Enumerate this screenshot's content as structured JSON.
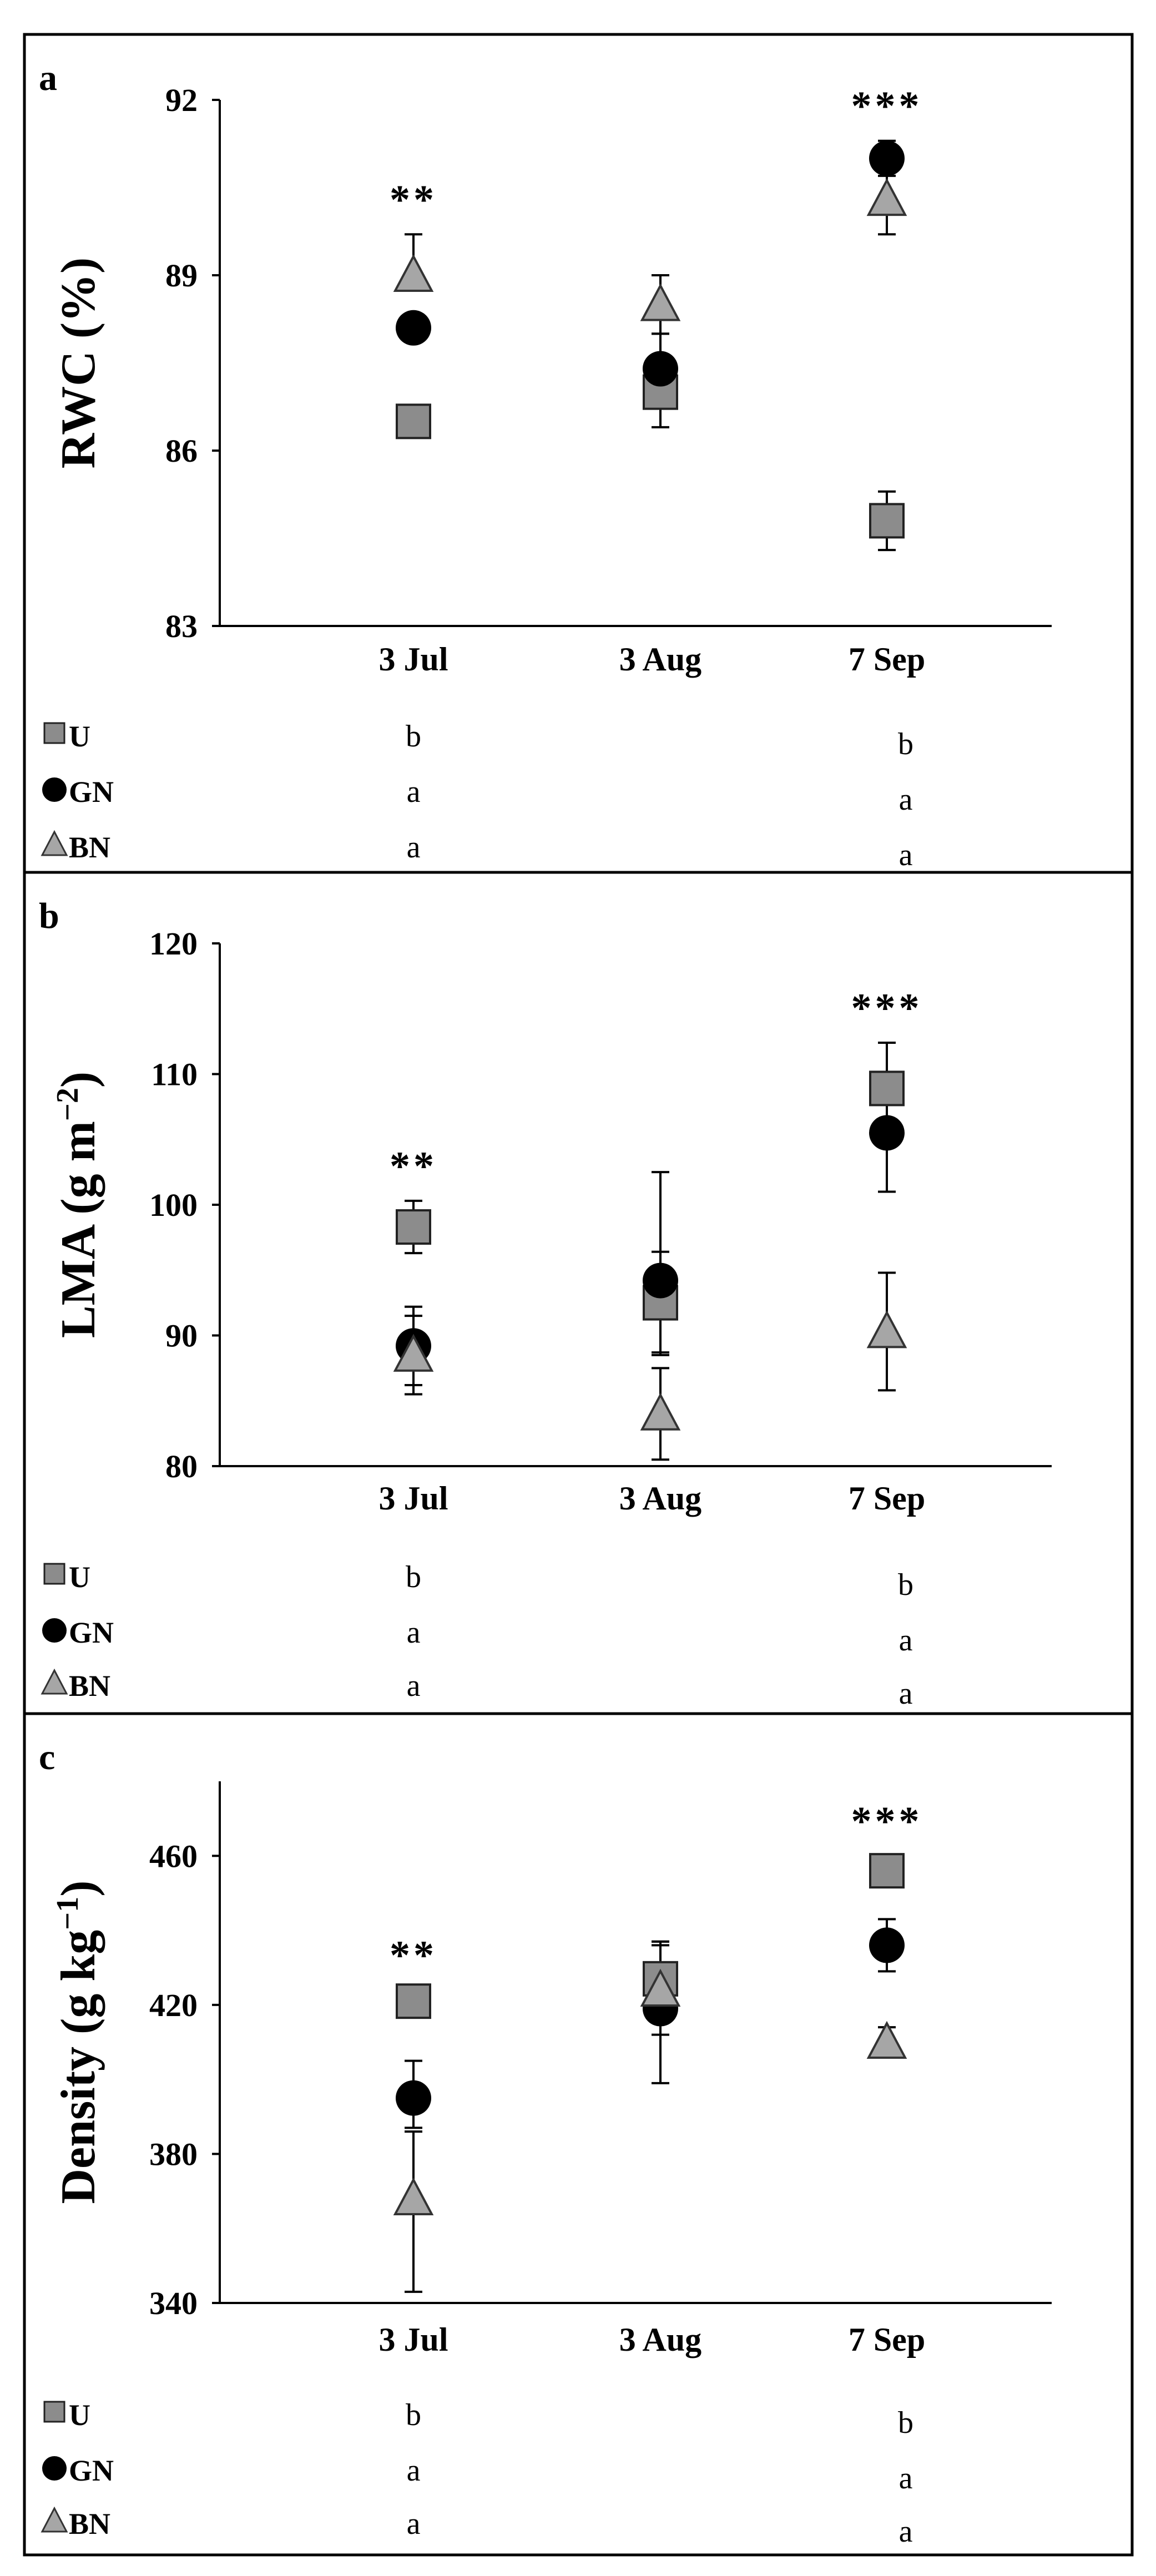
{
  "chart_data": [
    {
      "type": "scatter",
      "panel_label": "a",
      "ylabel": "RWC (%)",
      "ylabel_sup": "",
      "ylabel_tail": "",
      "ylim": [
        83,
        92
      ],
      "yticks": [
        "92",
        "89",
        "86",
        "83"
      ],
      "yticks_values": [
        92,
        89,
        86,
        83
      ],
      "categories": [
        "3 Jul",
        "3 Aug",
        "7 Sep"
      ],
      "significance": [
        "**",
        "",
        "***"
      ],
      "series": [
        {
          "name": "U",
          "marker": "square",
          "color": "#8c8c8c",
          "values": [
            86.5,
            87.0,
            84.8
          ],
          "err_low": [
            0,
            0.6,
            0.5
          ],
          "err_high": [
            0,
            0.5,
            0.5
          ]
        },
        {
          "name": "GN",
          "marker": "circle",
          "color": "#000000",
          "values": [
            88.1,
            87.4,
            91.0
          ],
          "err_low": [
            0,
            0.6,
            0.3
          ],
          "err_high": [
            0,
            0.6,
            0.3
          ]
        },
        {
          "name": "BN",
          "marker": "triangle",
          "color": "#a6a6a6",
          "values": [
            89.0,
            88.5,
            90.3
          ],
          "err_low": [
            0,
            0.5,
            0.6
          ],
          "err_high": [
            0.7,
            0.5,
            0.6
          ]
        }
      ],
      "legend": {
        "items": [
          {
            "name": "U",
            "letters": [
              "b",
              "b"
            ]
          },
          {
            "name": "GN",
            "letters": [
              "a",
              "a"
            ]
          },
          {
            "name": "BN",
            "letters": [
              "a",
              "a"
            ]
          }
        ]
      }
    },
    {
      "type": "scatter",
      "panel_label": "b",
      "ylabel": "LMA (g m",
      "ylabel_sup": "−2",
      "ylabel_tail": ")",
      "ylim": [
        80,
        120
      ],
      "yticks": [
        "120",
        "110",
        "100",
        "90",
        "80"
      ],
      "yticks_values": [
        120,
        110,
        100,
        90,
        80
      ],
      "categories": [
        "3 Jul",
        "3 Aug",
        "7 Sep"
      ],
      "significance": [
        "**",
        "",
        "***"
      ],
      "series": [
        {
          "name": "U",
          "marker": "square",
          "color": "#8c8c8c",
          "values": [
            98.3,
            92.5,
            108.9
          ],
          "err_low": [
            2.0,
            4.0,
            3.5
          ],
          "err_high": [
            2.0,
            10.0,
            3.5
          ]
        },
        {
          "name": "GN",
          "marker": "circle",
          "color": "#000000",
          "values": [
            89.2,
            94.2,
            105.5
          ],
          "err_low": [
            3.0,
            5.5,
            4.5
          ],
          "err_high": [
            3.0,
            2.2,
            4.5
          ]
        },
        {
          "name": "BN",
          "marker": "triangle",
          "color": "#a6a6a6",
          "values": [
            88.5,
            84.0,
            90.3
          ],
          "err_low": [
            3.0,
            3.5,
            4.5
          ],
          "err_high": [
            3.0,
            3.5,
            4.5
          ]
        }
      ],
      "legend": {
        "items": [
          {
            "name": "U",
            "letters": [
              "b",
              "b"
            ]
          },
          {
            "name": "GN",
            "letters": [
              "a",
              "a"
            ]
          },
          {
            "name": "BN",
            "letters": [
              "a",
              "a"
            ]
          }
        ]
      }
    },
    {
      "type": "scatter",
      "panel_label": "c",
      "ylabel": "Density (g kg",
      "ylabel_sup": "−1",
      "ylabel_tail": ")",
      "ylim": [
        340,
        480
      ],
      "yticks": [
        "460",
        "420",
        "380",
        "340"
      ],
      "yticks_values": [
        460,
        420,
        380,
        340
      ],
      "categories": [
        "3 Jul",
        "3 Aug",
        "7 Sep"
      ],
      "significance": [
        "**",
        "",
        "***"
      ],
      "series": [
        {
          "name": "U",
          "marker": "square",
          "color": "#8c8c8c",
          "values": [
            421,
            427,
            456
          ],
          "err_low": [
            3,
            10,
            4
          ],
          "err_high": [
            3,
            10,
            4
          ]
        },
        {
          "name": "GN",
          "marker": "circle",
          "color": "#000000",
          "values": [
            395,
            419,
            436
          ],
          "err_low": [
            8,
            20,
            7
          ],
          "err_high": [
            10,
            18,
            7
          ]
        },
        {
          "name": "BN",
          "marker": "triangle",
          "color": "#a6a6a6",
          "values": [
            368,
            424,
            410
          ],
          "err_low": [
            25,
            12,
            4
          ],
          "err_high": [
            18,
            12,
            4
          ]
        }
      ],
      "legend": {
        "items": [
          {
            "name": "U",
            "letters": [
              "b",
              "b"
            ]
          },
          {
            "name": "GN",
            "letters": [
              "a",
              "a"
            ]
          },
          {
            "name": "BN",
            "letters": [
              "a",
              "a"
            ]
          }
        ]
      }
    }
  ]
}
